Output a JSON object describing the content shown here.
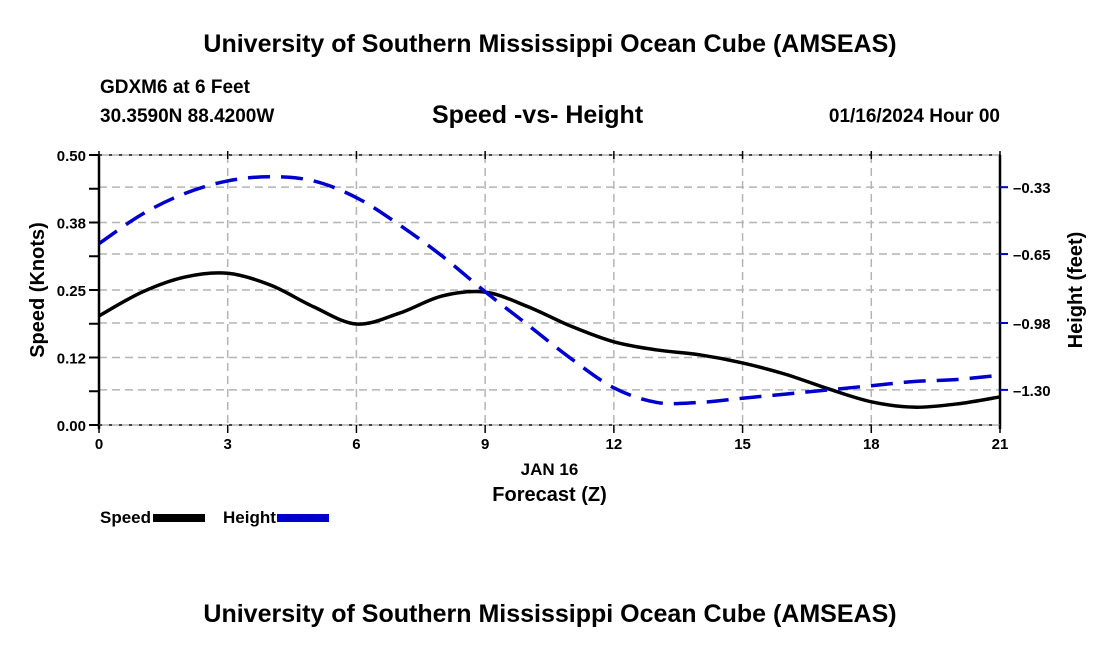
{
  "header": {
    "title": "University of Southern Mississippi Ocean Cube (AMSEAS)",
    "station_line": "GDXM6 at 6 Feet",
    "coords_line": "30.3590N  88.4200W",
    "subtitle": "Speed -vs- Height",
    "datetime": "01/16/2024 Hour 00"
  },
  "footer": {
    "title": "University of Southern Mississippi Ocean Cube (AMSEAS)"
  },
  "legend": {
    "items": [
      {
        "label": "Speed",
        "color": "#000000",
        "style": "solid"
      },
      {
        "label": "Height",
        "color": "#0000cc",
        "style": "dashed"
      }
    ]
  },
  "chart_data": {
    "type": "line",
    "title": "Speed -vs- Height",
    "xlabel": "Forecast (Z)",
    "xsublabel": "JAN 16",
    "ylabel": "Speed (Knots)",
    "y2label": "Height (feet)",
    "xlim": [
      0,
      21
    ],
    "ylim": [
      0,
      0.5
    ],
    "y2lim": [
      -1.468,
      -0.176
    ],
    "x_ticks": [
      0,
      3,
      6,
      9,
      12,
      15,
      18,
      21
    ],
    "x_tick_labels": [
      "0",
      "3",
      "6",
      "9",
      "12",
      "15",
      "18",
      "21"
    ],
    "y_ticks": [
      0.0,
      0.125,
      0.25,
      0.375,
      0.5
    ],
    "y_tick_labels": [
      "0.00",
      "0.12",
      "0.25",
      "0.38",
      "0.50"
    ],
    "y2_ticks": [
      -0.33,
      -0.65,
      -0.98,
      -1.3
    ],
    "y2_tick_labels": [
      "-0.33",
      "-0.65",
      "-0.98",
      "-1.30"
    ],
    "grid": true,
    "legend_position": "bottom-left",
    "x": [
      0,
      1,
      2,
      3,
      4,
      5,
      6,
      7,
      8,
      9,
      10,
      11,
      12,
      13,
      14,
      15,
      16,
      17,
      18,
      19,
      20,
      21
    ],
    "series": [
      {
        "name": "Speed",
        "axis": "left",
        "color": "#000000",
        "style": "solid",
        "values": [
          0.202,
          0.246,
          0.274,
          0.281,
          0.259,
          0.219,
          0.187,
          0.207,
          0.239,
          0.246,
          0.219,
          0.183,
          0.154,
          0.139,
          0.13,
          0.115,
          0.094,
          0.067,
          0.043,
          0.033,
          0.039,
          0.052
        ]
      },
      {
        "name": "Height",
        "axis": "right",
        "color": "#0000cc",
        "style": "dashed",
        "values": [
          -0.6,
          -0.46,
          -0.36,
          -0.3,
          -0.28,
          -0.3,
          -0.38,
          -0.51,
          -0.66,
          -0.83,
          -0.99,
          -1.15,
          -1.29,
          -1.36,
          -1.36,
          -1.34,
          -1.32,
          -1.3,
          -1.28,
          -1.26,
          -1.25,
          -1.23
        ]
      }
    ]
  }
}
